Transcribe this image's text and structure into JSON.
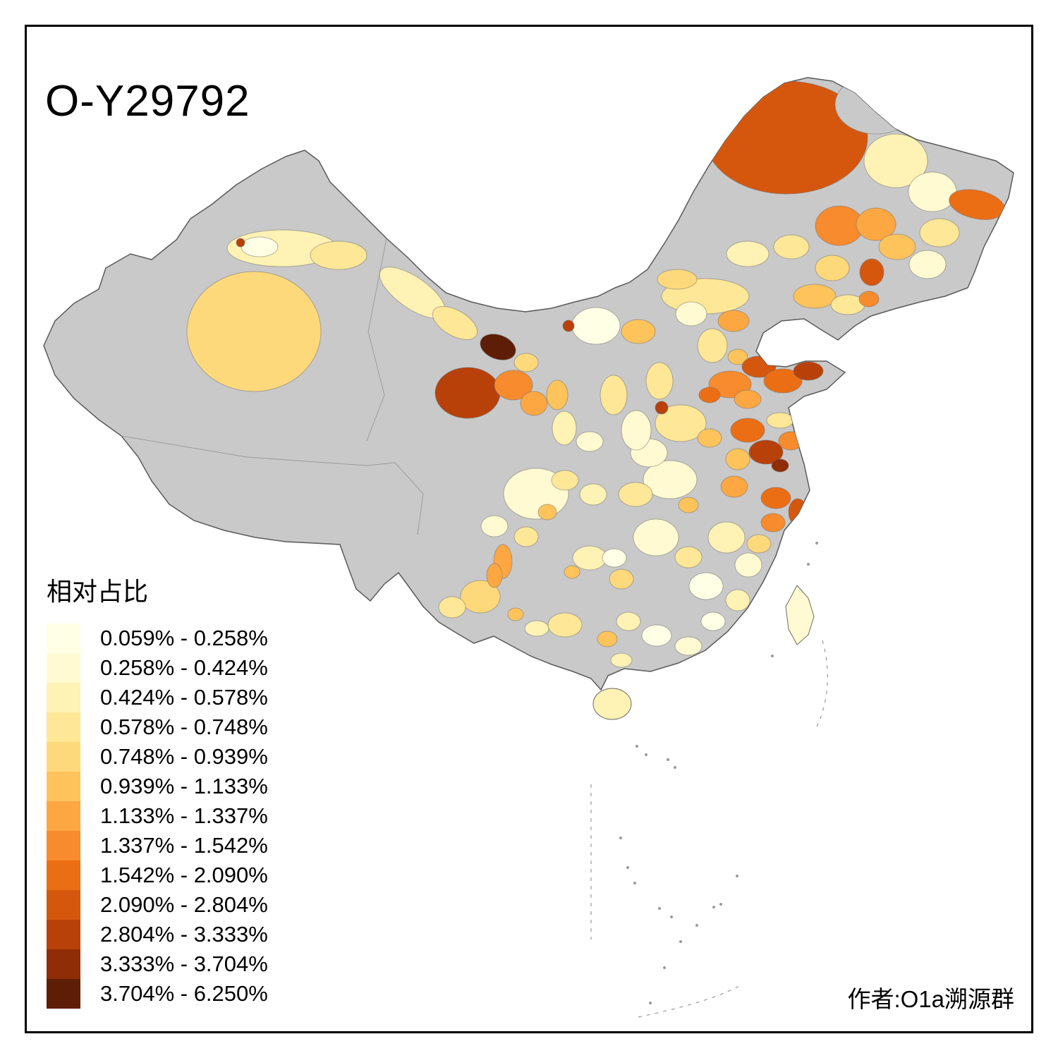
{
  "title": "O-Y29792",
  "attribution": "作者:O1a溯源群",
  "legend": {
    "title": "相对占比",
    "items": [
      {
        "range": "0.059% - 0.258%",
        "color": "#FFFFE5"
      },
      {
        "range": "0.258% - 0.424%",
        "color": "#FFFAD1"
      },
      {
        "range": "0.424% - 0.578%",
        "color": "#FEF2B4"
      },
      {
        "range": "0.578% - 0.748%",
        "color": "#FEE797"
      },
      {
        "range": "0.748% - 0.939%",
        "color": "#FED97C"
      },
      {
        "range": "0.939% - 1.133%",
        "color": "#FEC35B"
      },
      {
        "range": "1.133% - 1.337%",
        "color": "#FDA743"
      },
      {
        "range": "1.337% - 1.542%",
        "color": "#F88B2D"
      },
      {
        "range": "1.542% - 2.090%",
        "color": "#EC6E14"
      },
      {
        "range": "2.090% - 2.804%",
        "color": "#D5570E"
      },
      {
        "range": "2.804% - 3.333%",
        "color": "#B84109"
      },
      {
        "range": "3.333% - 3.704%",
        "color": "#8E2D06"
      },
      {
        "range": "3.704% - 6.250%",
        "color": "#5E1E05"
      }
    ]
  },
  "map": {
    "kind": "china-prefecture-choropleth",
    "no_data_color": "#C9C9C9",
    "boundary_color": "#5A5A5A",
    "background_color": "#FFFFFF"
  }
}
